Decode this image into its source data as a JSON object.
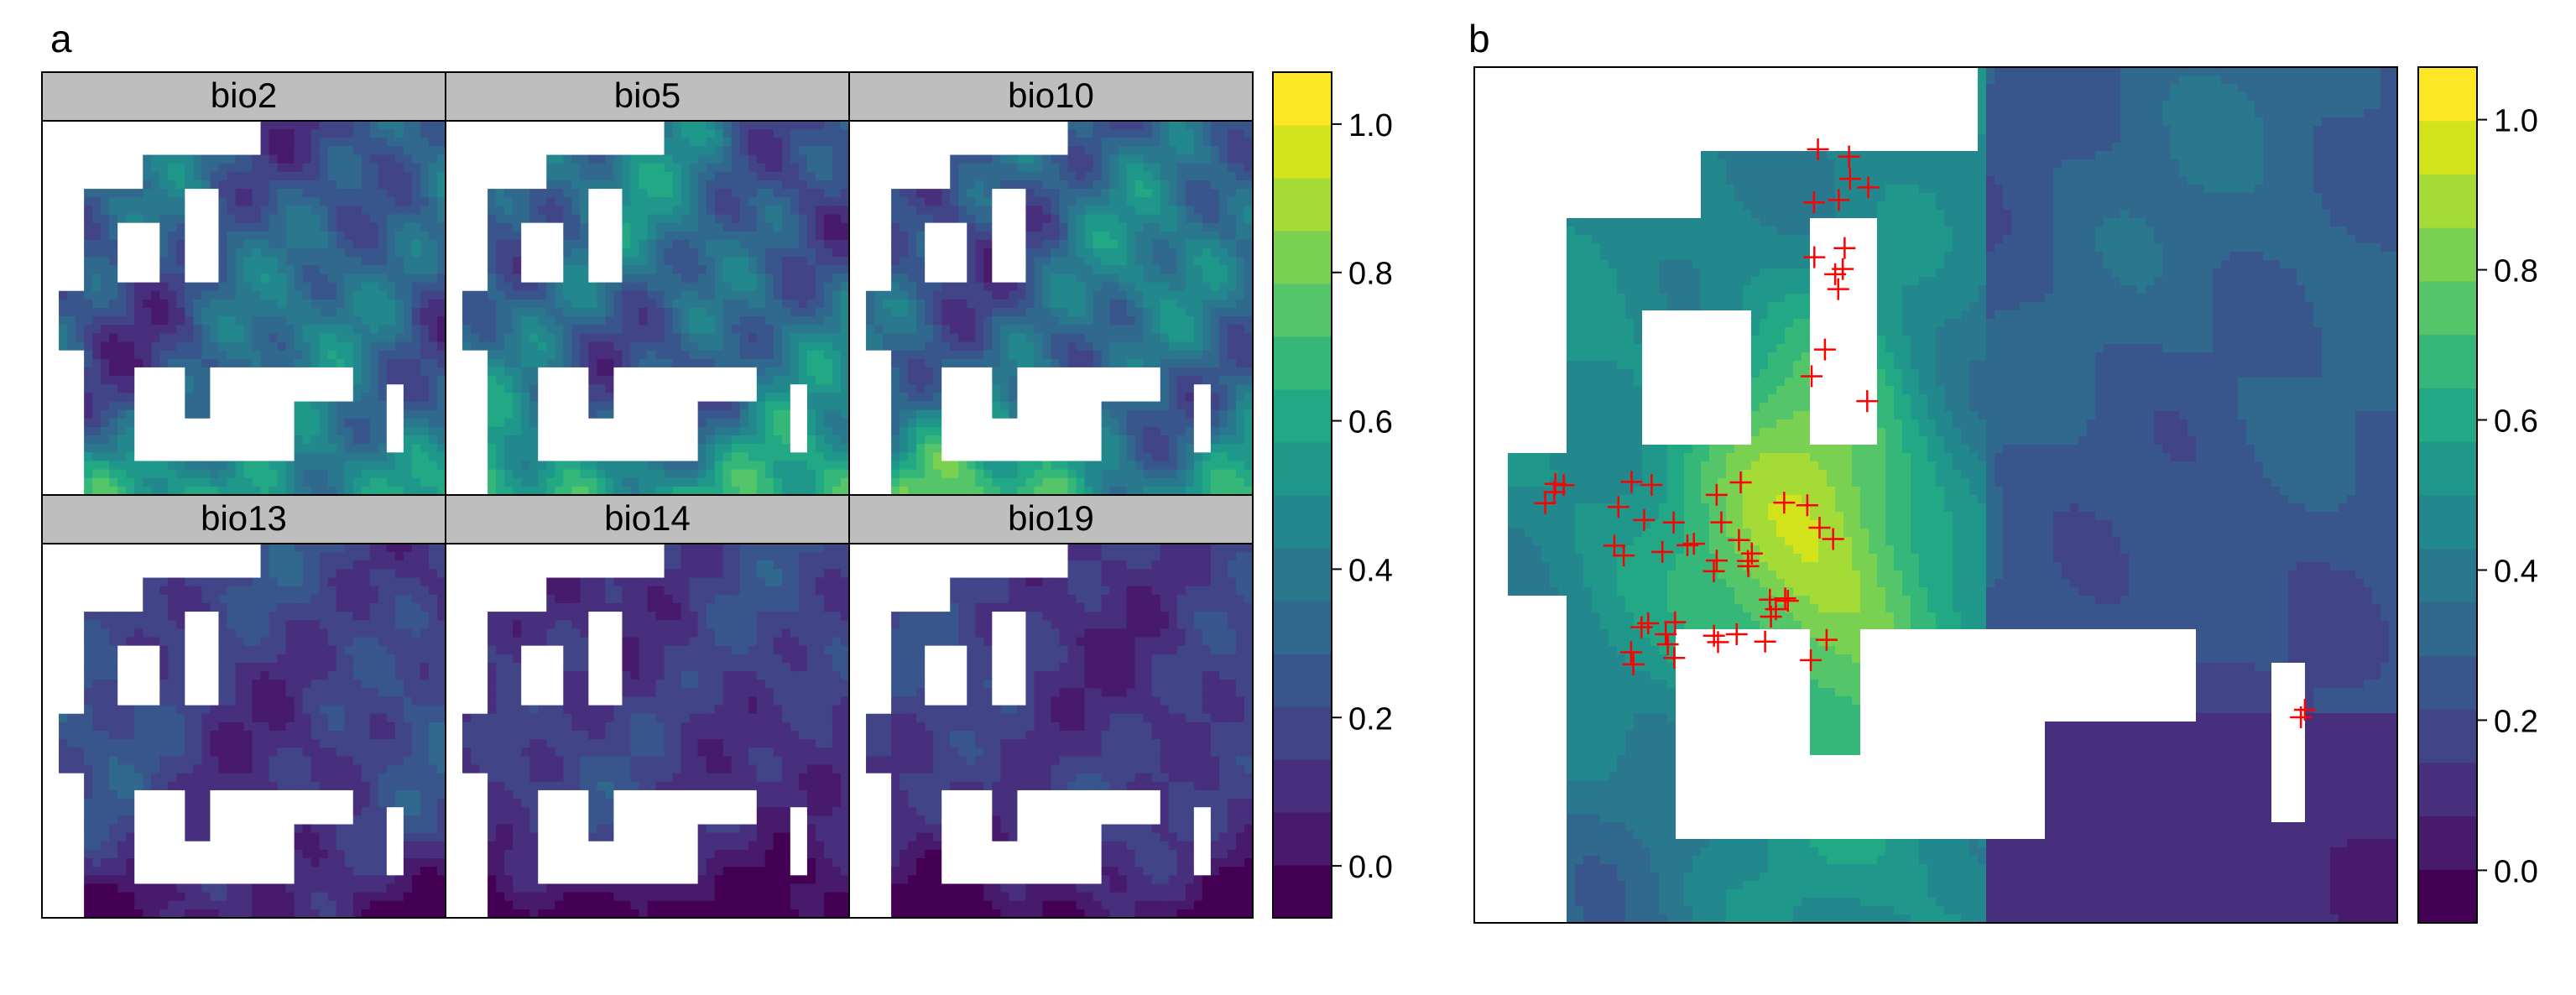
{
  "figure": {
    "panel_a_label": "a",
    "panel_b_label": "b"
  },
  "colors": {
    "strip_fill": "#bebebe",
    "frame": "#000000",
    "land_missing": "#ffffff",
    "marker": "#ff0000",
    "viridis": [
      "#440154",
      "#481a6c",
      "#472f7d",
      "#414487",
      "#39568c",
      "#31688e",
      "#2a788e",
      "#23888e",
      "#1f988b",
      "#22a884",
      "#35b779",
      "#54c568",
      "#7ad151",
      "#a5db36",
      "#d2e21b",
      "#fde725"
    ]
  },
  "chart_data": [
    {
      "type": "heatmap",
      "panel": "a",
      "layout": "2x3 faceted raster maps of Europe",
      "facets": [
        {
          "name": "bio2",
          "level_scale": 0.6,
          "south_boost": 0.85
        },
        {
          "name": "bio5",
          "level_scale": 0.65,
          "south_boost": 1.0
        },
        {
          "name": "bio10",
          "level_scale": 0.65,
          "south_boost": 1.0
        },
        {
          "name": "bio13",
          "level_scale": 0.35,
          "south_boost": -0.5
        },
        {
          "name": "bio14",
          "level_scale": 0.3,
          "south_boost": -0.7
        },
        {
          "name": "bio19",
          "level_scale": 0.3,
          "south_boost": -0.6
        }
      ],
      "colorbar": {
        "palette": "viridis",
        "levels": 16,
        "range": [
          -0.07,
          1.07
        ],
        "ticks": [
          0.0,
          0.2,
          0.4,
          0.6,
          0.8,
          1.0
        ],
        "tick_labels": [
          "0.0",
          "0.2",
          "0.4",
          "0.6",
          "0.8",
          "1.0"
        ]
      }
    },
    {
      "type": "heatmap",
      "panel": "b",
      "layout": "single raster map with occurrence points",
      "markers": {
        "symbol": "+",
        "color": "#ff0000",
        "count": 62
      },
      "colorbar": {
        "palette": "viridis",
        "levels": 16,
        "range": [
          -0.07,
          1.07
        ],
        "ticks": [
          0.0,
          0.2,
          0.4,
          0.6,
          0.8,
          1.0
        ],
        "tick_labels": [
          "0.0",
          "0.2",
          "0.4",
          "0.6",
          "0.8",
          "1.0"
        ]
      }
    }
  ]
}
